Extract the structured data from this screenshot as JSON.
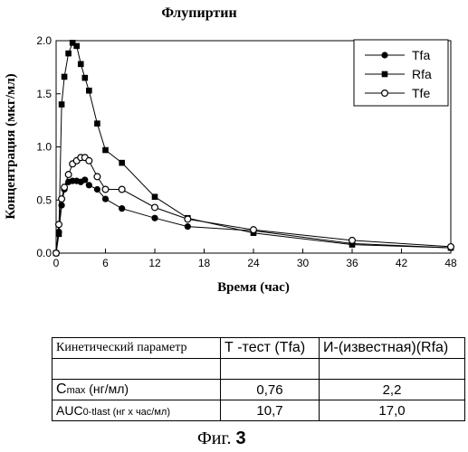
{
  "chart_data": {
    "type": "line",
    "title": "Флупиртин",
    "xlabel": "Время (час)",
    "ylabel": "Концентрация (мкг/мл)",
    "xlim": [
      0,
      48
    ],
    "ylim": [
      0,
      2.0
    ],
    "xticks": [
      0,
      6,
      12,
      18,
      24,
      30,
      36,
      42,
      48
    ],
    "yticks": [
      "0.0",
      "0.5",
      "1.0",
      "1.5",
      "2.0"
    ],
    "legend_position": "top-right",
    "grid": false,
    "series": [
      {
        "name": "Tfa",
        "marker": "filled-circle",
        "x": [
          0,
          0.33,
          0.67,
          1,
          1.5,
          2,
          2.5,
          3,
          3.5,
          4,
          5,
          6,
          8,
          12,
          16,
          24,
          36,
          48
        ],
        "y": [
          0,
          0.2,
          0.45,
          0.6,
          0.67,
          0.68,
          0.68,
          0.67,
          0.69,
          0.64,
          0.6,
          0.51,
          0.42,
          0.33,
          0.25,
          0.21,
          0.09,
          0.05
        ]
      },
      {
        "name": "Rfa",
        "marker": "filled-square",
        "x": [
          0,
          0.33,
          0.67,
          1,
          1.5,
          2,
          2.5,
          3,
          3.5,
          4,
          5,
          6,
          8,
          12,
          16,
          24,
          36,
          48
        ],
        "y": [
          0,
          0.18,
          1.4,
          1.66,
          1.88,
          1.98,
          1.95,
          1.78,
          1.65,
          1.53,
          1.22,
          0.97,
          0.85,
          0.53,
          0.33,
          0.19,
          0.08,
          0.05
        ]
      },
      {
        "name": "Tfe",
        "marker": "open-circle",
        "x": [
          0,
          0.33,
          0.67,
          1,
          1.5,
          2,
          2.5,
          3,
          3.5,
          4,
          5,
          6,
          8,
          12,
          16,
          24,
          36,
          48
        ],
        "y": [
          0,
          0.27,
          0.51,
          0.62,
          0.74,
          0.84,
          0.87,
          0.9,
          0.9,
          0.87,
          0.72,
          0.6,
          0.6,
          0.43,
          0.32,
          0.22,
          0.12,
          0.06
        ]
      }
    ]
  },
  "table": {
    "header": [
      "Кинетический параметр",
      "Т -тест (Tfa)",
      "И-(известная)(Rfa)"
    ],
    "rows": [
      {
        "param": "C",
        "sub": "max",
        "unit": " (нг/мл)",
        "t": "0,76",
        "r": "2,2"
      },
      {
        "param": "AUC",
        "sub": "0-tlast",
        "unit": " (нг х час/мл)",
        "t": "10,7",
        "r": "17,0"
      }
    ]
  },
  "caption": {
    "prefix": "Фиг. ",
    "number": "3"
  }
}
